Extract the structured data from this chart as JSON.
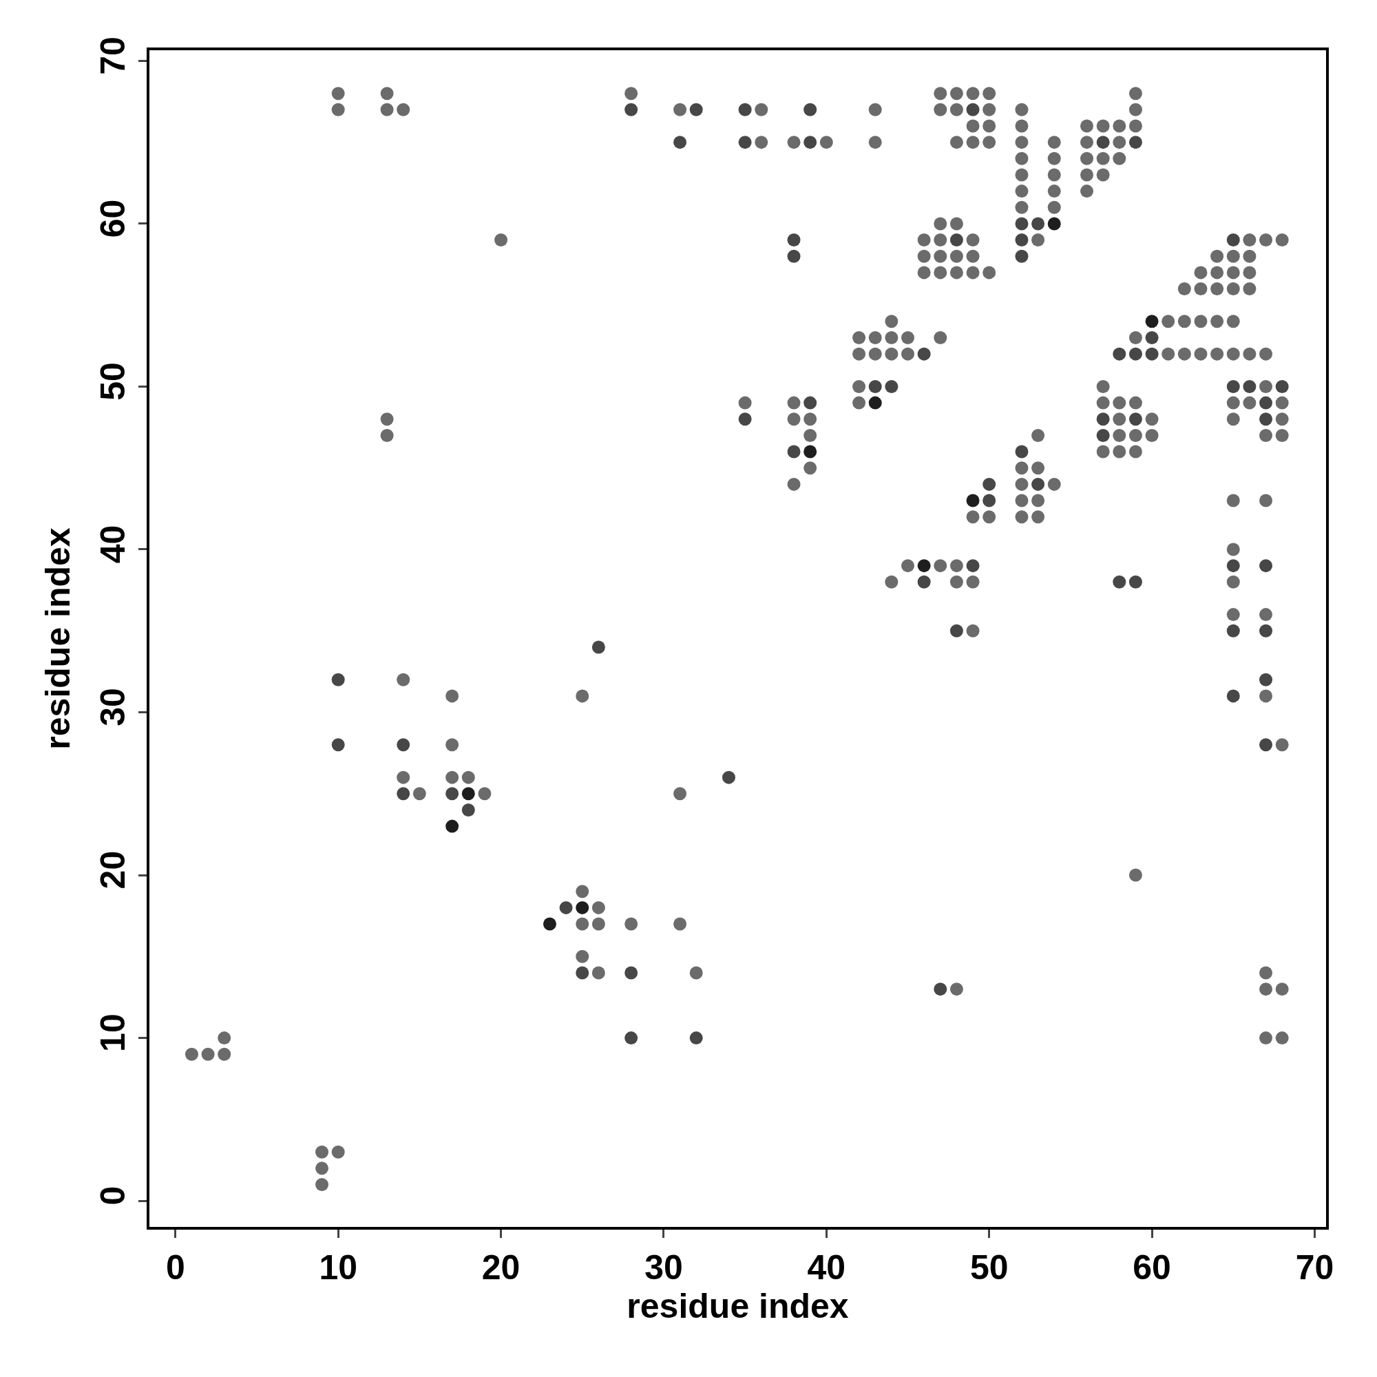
{
  "chart_data": {
    "type": "scatter",
    "xlabel": "residue index",
    "ylabel": "residue index",
    "xlim": [
      -1.6,
      70.7
    ],
    "ylim": [
      -1.6,
      70.65
    ],
    "xticks": [
      0,
      10,
      20,
      30,
      40,
      50,
      60,
      70
    ],
    "yticks": [
      0,
      10,
      20,
      30,
      40,
      50,
      60,
      70
    ],
    "marker": "circle",
    "series": [
      {
        "color": "#6b6b6b",
        "x": [
          10,
          13,
          28,
          47,
          48,
          49,
          50,
          59,
          10,
          13,
          14,
          31,
          36,
          43,
          47,
          48,
          50,
          52,
          59,
          49,
          50,
          52,
          56,
          57,
          58,
          59,
          36,
          38,
          40,
          43,
          48,
          49,
          50,
          52,
          54,
          56,
          58,
          52,
          54,
          56,
          57,
          58,
          52,
          54,
          56,
          57,
          52,
          54,
          56,
          52,
          54,
          47,
          48,
          20,
          46,
          47,
          49,
          53,
          66,
          67,
          68,
          46,
          47,
          48,
          49,
          64,
          65,
          66,
          46,
          47,
          48,
          49,
          50,
          63,
          64,
          65,
          66,
          62,
          63,
          64,
          65,
          66,
          44,
          61,
          62,
          63,
          64,
          65,
          42,
          43,
          44,
          45,
          47,
          59,
          42,
          43,
          44,
          45,
          61,
          62,
          63,
          64,
          65,
          66,
          67,
          42,
          57,
          67,
          35,
          38,
          42,
          57,
          58,
          59,
          65,
          66,
          68,
          13,
          38,
          39,
          58,
          60,
          65,
          68,
          13,
          39,
          53,
          58,
          59,
          60,
          67,
          68,
          57,
          58,
          59,
          39,
          52,
          53,
          38,
          52,
          54,
          52,
          53,
          65,
          67,
          49,
          50,
          52,
          53,
          65,
          45,
          47,
          48,
          44,
          48,
          49,
          65,
          65,
          67,
          49,
          14,
          17,
          25,
          67,
          17,
          68,
          14,
          17,
          18,
          15,
          19,
          31,
          59,
          25,
          26,
          25,
          26,
          28,
          31,
          25,
          26,
          32,
          67,
          48,
          67,
          68,
          3,
          67,
          68,
          1,
          2,
          3,
          9,
          10,
          9,
          9
        ],
        "values": [
          68,
          68,
          68,
          68,
          68,
          68,
          68,
          68,
          67,
          67,
          67,
          67,
          67,
          67,
          67,
          67,
          67,
          67,
          67,
          66,
          66,
          66,
          66,
          66,
          66,
          66,
          65,
          65,
          65,
          65,
          65,
          65,
          65,
          65,
          65,
          65,
          65,
          64,
          64,
          64,
          64,
          64,
          63,
          63,
          63,
          63,
          62,
          62,
          62,
          61,
          61,
          60,
          60,
          59,
          59,
          59,
          59,
          59,
          59,
          59,
          59,
          58,
          58,
          58,
          58,
          58,
          58,
          58,
          57,
          57,
          57,
          57,
          57,
          57,
          57,
          57,
          57,
          56,
          56,
          56,
          56,
          56,
          54,
          54,
          54,
          54,
          54,
          54,
          53,
          53,
          53,
          53,
          53,
          53,
          52,
          52,
          52,
          52,
          52,
          52,
          52,
          52,
          52,
          52,
          52,
          50,
          50,
          50,
          49,
          49,
          49,
          49,
          49,
          49,
          49,
          49,
          49,
          48,
          48,
          48,
          48,
          48,
          48,
          48,
          47,
          47,
          47,
          47,
          47,
          47,
          47,
          47,
          46,
          46,
          46,
          45,
          45,
          45,
          44,
          44,
          44,
          43,
          43,
          43,
          43,
          42,
          42,
          42,
          42,
          40,
          39,
          39,
          39,
          38,
          38,
          38,
          38,
          36,
          36,
          35,
          32,
          31,
          31,
          31,
          28,
          28,
          26,
          26,
          26,
          25,
          25,
          25,
          20,
          19,
          18,
          17,
          17,
          17,
          17,
          15,
          14,
          14,
          14,
          13,
          13,
          13,
          10,
          10,
          10,
          9,
          9,
          9,
          3,
          3,
          2,
          1
        ]
      },
      {
        "color": "#474747",
        "x": [
          28,
          32,
          35,
          39,
          49,
          31,
          35,
          39,
          57,
          59,
          52,
          53,
          38,
          48,
          52,
          65,
          38,
          52,
          60,
          46,
          58,
          59,
          60,
          43,
          44,
          65,
          66,
          68,
          39,
          67,
          35,
          57,
          59,
          67,
          57,
          38,
          52,
          50,
          53,
          50,
          49,
          65,
          67,
          46,
          58,
          59,
          48,
          65,
          67,
          26,
          10,
          67,
          65,
          10,
          14,
          67,
          34,
          14,
          17,
          18,
          24,
          25,
          28,
          47,
          28,
          32
        ],
        "values": [
          67,
          67,
          67,
          67,
          67,
          65,
          65,
          65,
          65,
          65,
          60,
          60,
          59,
          59,
          59,
          59,
          58,
          58,
          53,
          52,
          52,
          52,
          52,
          50,
          50,
          50,
          50,
          50,
          49,
          49,
          48,
          48,
          48,
          48,
          47,
          46,
          46,
          44,
          44,
          43,
          39,
          39,
          39,
          38,
          38,
          38,
          35,
          35,
          35,
          34,
          32,
          32,
          31,
          28,
          28,
          28,
          26,
          25,
          25,
          24,
          18,
          14,
          14,
          13,
          10,
          10
        ]
      },
      {
        "color": "#1e1e1e",
        "x": [
          54,
          60,
          43,
          39,
          49,
          46,
          18,
          17,
          25,
          23
        ],
        "values": [
          60,
          54,
          49,
          46,
          43,
          39,
          25,
          23,
          18,
          17
        ]
      }
    ]
  }
}
